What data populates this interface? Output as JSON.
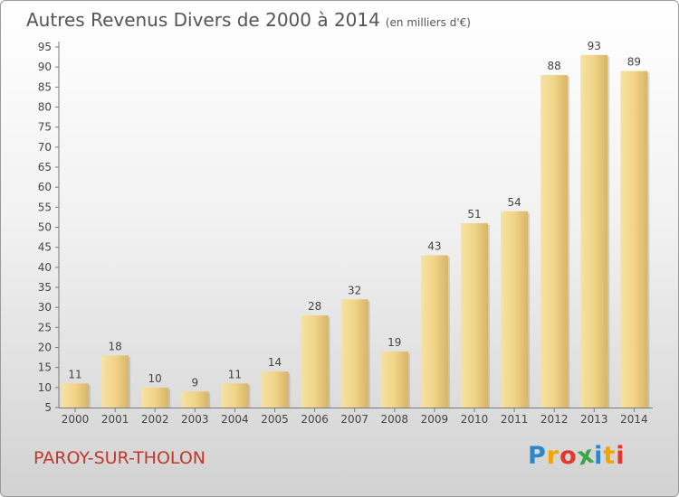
{
  "chart_data": {
    "type": "bar",
    "title": "Autres Revenus Divers de 2000 à 2014",
    "subtitle": "(en milliers d'€)",
    "categories": [
      "2000",
      "2001",
      "2002",
      "2003",
      "2004",
      "2005",
      "2006",
      "2007",
      "2008",
      "2009",
      "2010",
      "2011",
      "2012",
      "2013",
      "2014"
    ],
    "values": [
      11,
      18,
      10,
      9,
      11,
      14,
      28,
      32,
      19,
      43,
      51,
      54,
      88,
      93,
      89
    ],
    "ylim": [
      5,
      95
    ],
    "yticks": [
      5,
      10,
      15,
      20,
      25,
      30,
      35,
      40,
      45,
      50,
      55,
      60,
      65,
      70,
      75,
      80,
      85,
      90,
      95
    ],
    "grid": false,
    "bar_color": "#e8c97a"
  },
  "location": "PAROY-SUR-THOLON",
  "logo": {
    "letters": [
      "P",
      "r",
      "o",
      "x",
      "i",
      "t",
      "i"
    ],
    "colors": [
      "#2d86c9",
      "#f2a400",
      "#e2382f",
      "#3aa64a",
      "#2d86c9",
      "#f2a400",
      "#e2382f"
    ]
  }
}
